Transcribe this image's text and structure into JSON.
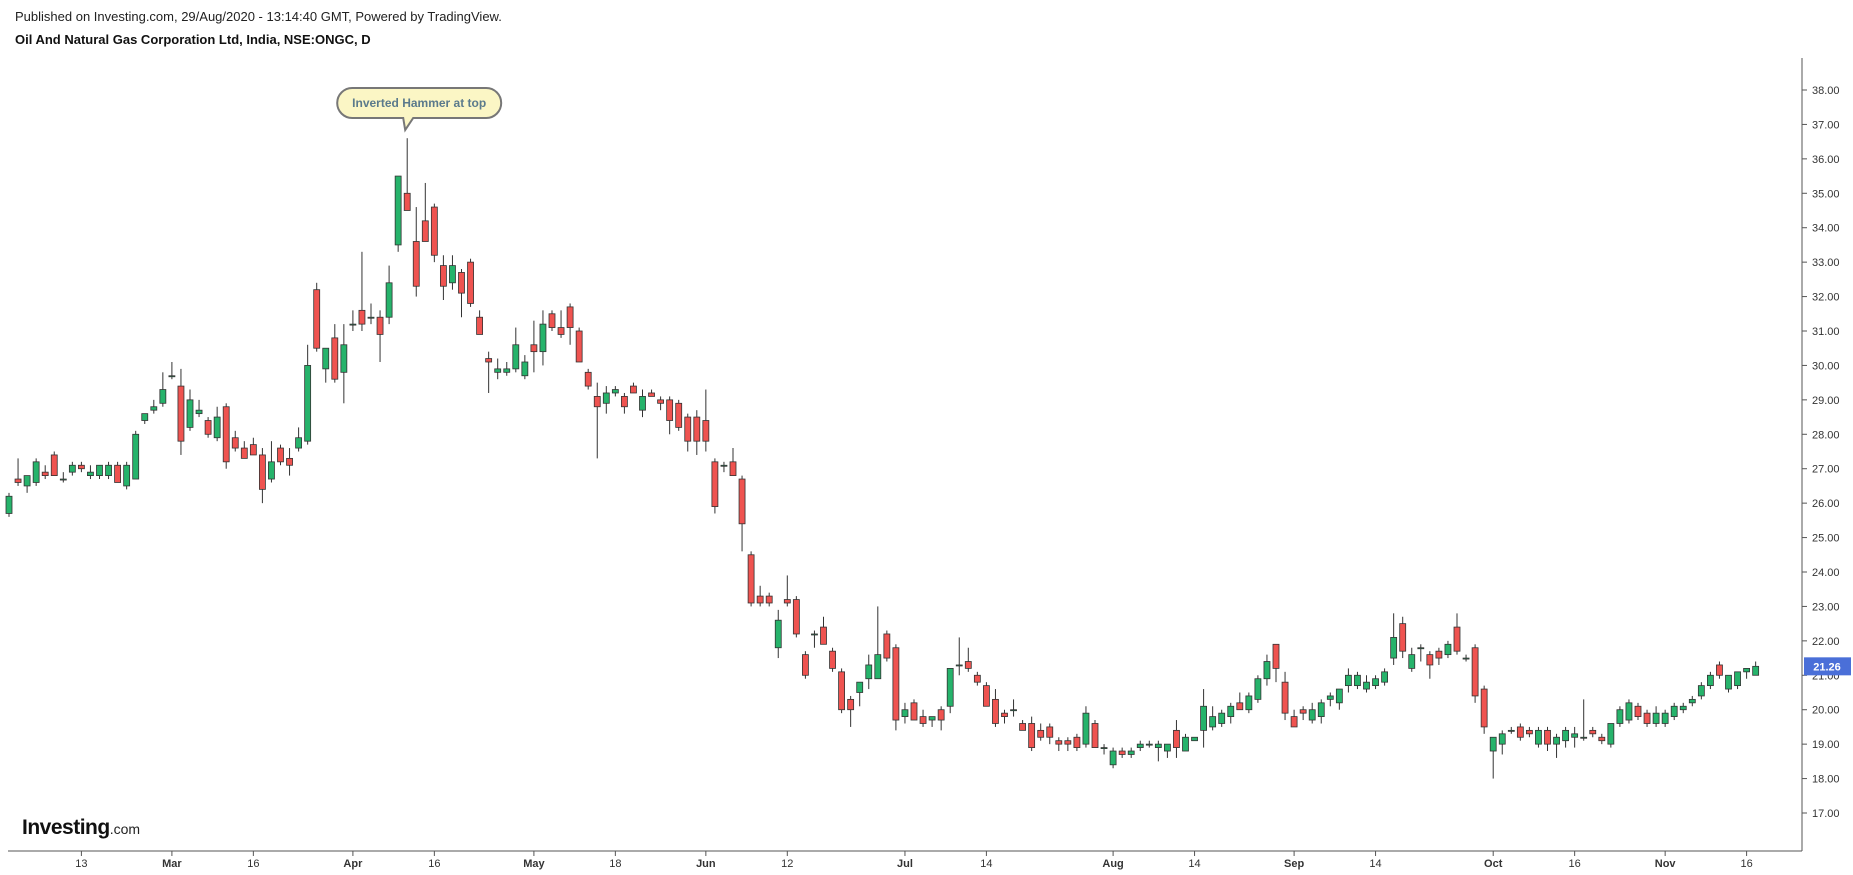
{
  "header": {
    "published": "Published on Investing.com, 29/Aug/2020 - 13:14:40 GMT, Powered by TradingView.",
    "symbol_title": "Oil And Natural Gas Corporation Ltd, India, NSE:ONGC, D"
  },
  "brand": {
    "name": "Investing",
    "suffix": ".com"
  },
  "chart_data": {
    "type": "candlestick",
    "y_range": [
      17.0,
      38.0
    ],
    "y_ticks": [
      "17.00",
      "18.00",
      "19.00",
      "20.00",
      "21.00",
      "22.00",
      "23.00",
      "24.00",
      "25.00",
      "26.00",
      "27.00",
      "28.00",
      "29.00",
      "30.00",
      "31.00",
      "32.00",
      "33.00",
      "34.00",
      "35.00",
      "36.00",
      "37.00",
      "38.00"
    ],
    "x_tick_labels": [
      {
        "label": "13",
        "major": false,
        "bar": 8
      },
      {
        "label": "Mar",
        "major": true,
        "bar": 18
      },
      {
        "label": "16",
        "major": false,
        "bar": 27
      },
      {
        "label": "Apr",
        "major": true,
        "bar": 38
      },
      {
        "label": "16",
        "major": false,
        "bar": 47
      },
      {
        "label": "May",
        "major": true,
        "bar": 58
      },
      {
        "label": "18",
        "major": false,
        "bar": 67
      },
      {
        "label": "Jun",
        "major": true,
        "bar": 77
      },
      {
        "label": "12",
        "major": false,
        "bar": 86
      },
      {
        "label": "Jul",
        "major": true,
        "bar": 99
      },
      {
        "label": "14",
        "major": false,
        "bar": 108
      },
      {
        "label": "Aug",
        "major": true,
        "bar": 122
      },
      {
        "label": "14",
        "major": false,
        "bar": 131
      },
      {
        "label": "Sep",
        "major": true,
        "bar": 142
      },
      {
        "label": "14",
        "major": false,
        "bar": 151
      },
      {
        "label": "Oct",
        "major": true,
        "bar": 164
      },
      {
        "label": "16",
        "major": false,
        "bar": 173
      },
      {
        "label": "Nov",
        "major": true,
        "bar": 183
      },
      {
        "label": "16",
        "major": false,
        "bar": 192
      }
    ],
    "last_price": "21.26",
    "last_price_color": "#4a6fd8",
    "up_color": "#26b36b",
    "down_color": "#ef5350",
    "annotation": {
      "text": "Inverted Hammer at top",
      "bar": 44
    },
    "candles": [
      [
        25.7,
        26.3,
        25.6,
        26.2
      ],
      [
        26.7,
        27.3,
        26.5,
        26.6
      ],
      [
        26.5,
        26.8,
        26.3,
        26.8
      ],
      [
        26.6,
        27.3,
        26.5,
        27.2
      ],
      [
        26.9,
        27.1,
        26.7,
        26.8
      ],
      [
        27.4,
        27.5,
        26.8,
        26.8
      ],
      [
        26.7,
        26.9,
        26.6,
        26.7
      ],
      [
        26.9,
        27.2,
        26.8,
        27.1
      ],
      [
        27.1,
        27.2,
        26.9,
        27.0
      ],
      [
        26.8,
        27.1,
        26.7,
        26.9
      ],
      [
        26.8,
        27.1,
        26.7,
        27.1
      ],
      [
        26.8,
        27.2,
        26.7,
        27.1
      ],
      [
        27.1,
        27.2,
        26.6,
        26.6
      ],
      [
        26.5,
        27.2,
        26.4,
        27.1
      ],
      [
        26.7,
        28.1,
        26.7,
        28.0
      ],
      [
        28.4,
        28.6,
        28.3,
        28.6
      ],
      [
        28.7,
        29.0,
        28.6,
        28.8
      ],
      [
        28.9,
        29.8,
        28.8,
        29.3
      ],
      [
        29.7,
        30.1,
        29.6,
        29.7
      ],
      [
        29.4,
        29.9,
        27.4,
        27.8
      ],
      [
        28.2,
        29.3,
        28.1,
        29.0
      ],
      [
        28.6,
        29.0,
        28.5,
        28.7
      ],
      [
        28.4,
        28.5,
        27.9,
        28.0
      ],
      [
        27.9,
        28.8,
        27.8,
        28.5
      ],
      [
        28.8,
        28.9,
        27.0,
        27.2
      ],
      [
        27.9,
        28.1,
        27.5,
        27.6
      ],
      [
        27.6,
        27.8,
        27.3,
        27.3
      ],
      [
        27.7,
        27.9,
        27.4,
        27.4
      ],
      [
        27.4,
        27.6,
        26.0,
        26.4
      ],
      [
        26.7,
        27.8,
        26.6,
        27.2
      ],
      [
        27.6,
        27.7,
        27.1,
        27.2
      ],
      [
        27.3,
        27.6,
        26.8,
        27.1
      ],
      [
        27.6,
        28.2,
        27.5,
        27.9
      ],
      [
        27.8,
        30.6,
        27.7,
        30.0
      ],
      [
        32.2,
        32.4,
        30.4,
        30.5
      ],
      [
        29.9,
        30.5,
        29.5,
        30.5
      ],
      [
        30.8,
        31.2,
        29.5,
        29.6
      ],
      [
        29.8,
        31.2,
        28.9,
        30.6
      ],
      [
        31.2,
        31.6,
        31.0,
        31.2
      ],
      [
        31.6,
        33.3,
        31.0,
        31.2
      ],
      [
        31.4,
        31.8,
        31.2,
        31.4
      ],
      [
        31.4,
        31.6,
        30.1,
        30.9
      ],
      [
        31.4,
        32.9,
        31.2,
        32.4
      ],
      [
        33.5,
        35.5,
        33.3,
        35.5
      ],
      [
        35.0,
        36.6,
        34.5,
        34.5
      ],
      [
        33.6,
        34.6,
        32.0,
        32.3
      ],
      [
        34.2,
        35.3,
        33.8,
        33.6
      ],
      [
        34.6,
        34.7,
        33.0,
        33.2
      ],
      [
        32.9,
        33.2,
        31.9,
        32.3
      ],
      [
        32.4,
        33.2,
        32.2,
        32.9
      ],
      [
        32.7,
        32.8,
        31.4,
        32.1
      ],
      [
        33.0,
        33.1,
        31.7,
        31.8
      ],
      [
        31.4,
        31.6,
        30.9,
        30.9
      ],
      [
        30.2,
        30.4,
        29.2,
        30.1
      ],
      [
        29.8,
        30.2,
        29.6,
        29.9
      ],
      [
        29.8,
        30.1,
        29.7,
        29.9
      ],
      [
        29.9,
        31.1,
        29.8,
        30.6
      ],
      [
        29.7,
        30.3,
        29.6,
        30.1
      ],
      [
        30.6,
        31.3,
        29.8,
        30.4
      ],
      [
        30.4,
        31.6,
        30.0,
        31.2
      ],
      [
        31.5,
        31.6,
        31.0,
        31.1
      ],
      [
        31.1,
        31.6,
        30.8,
        30.9
      ],
      [
        31.7,
        31.8,
        30.6,
        31.1
      ],
      [
        31.0,
        31.1,
        30.1,
        30.1
      ],
      [
        29.8,
        29.9,
        29.3,
        29.4
      ],
      [
        29.1,
        29.5,
        27.3,
        28.8
      ],
      [
        28.9,
        29.4,
        28.6,
        29.2
      ],
      [
        29.2,
        29.4,
        29.1,
        29.3
      ],
      [
        29.1,
        29.2,
        28.6,
        28.8
      ],
      [
        29.4,
        29.5,
        29.2,
        29.2
      ],
      [
        28.7,
        29.3,
        28.5,
        29.1
      ],
      [
        29.2,
        29.3,
        29.1,
        29.1
      ],
      [
        29.0,
        29.1,
        28.7,
        28.9
      ],
      [
        29.0,
        29.1,
        28.0,
        28.4
      ],
      [
        28.9,
        29.0,
        28.1,
        28.2
      ],
      [
        28.5,
        28.6,
        27.5,
        27.8
      ],
      [
        28.5,
        28.7,
        27.4,
        27.8
      ],
      [
        28.4,
        29.3,
        27.5,
        27.8
      ],
      [
        27.2,
        27.3,
        25.7,
        25.9
      ],
      [
        27.1,
        27.2,
        26.9,
        27.1
      ],
      [
        27.2,
        27.6,
        26.8,
        26.8
      ],
      [
        26.7,
        26.8,
        24.6,
        25.4
      ],
      [
        24.5,
        24.6,
        23.0,
        23.1
      ],
      [
        23.3,
        23.6,
        23.0,
        23.1
      ],
      [
        23.3,
        23.4,
        23.0,
        23.1
      ],
      [
        21.8,
        22.9,
        21.5,
        22.6
      ],
      [
        23.2,
        23.9,
        23.0,
        23.1
      ],
      [
        23.2,
        23.3,
        22.1,
        22.2
      ],
      [
        21.6,
        21.7,
        20.9,
        21.0
      ],
      [
        22.2,
        22.3,
        21.8,
        22.2
      ],
      [
        22.4,
        22.7,
        21.9,
        21.9
      ],
      [
        21.7,
        21.8,
        21.1,
        21.2
      ],
      [
        21.1,
        21.2,
        19.9,
        20.0
      ],
      [
        20.3,
        20.4,
        19.5,
        20.0
      ],
      [
        20.5,
        20.8,
        20.1,
        20.8
      ],
      [
        20.9,
        21.6,
        20.6,
        21.3
      ],
      [
        20.9,
        23.0,
        20.9,
        21.6
      ],
      [
        22.2,
        22.3,
        21.4,
        21.5
      ],
      [
        21.8,
        21.9,
        19.4,
        19.7
      ],
      [
        19.8,
        20.2,
        19.6,
        20.0
      ],
      [
        20.2,
        20.3,
        19.7,
        19.7
      ],
      [
        19.8,
        20.0,
        19.5,
        19.6
      ],
      [
        19.7,
        19.8,
        19.5,
        19.8
      ],
      [
        20.0,
        20.1,
        19.4,
        19.7
      ],
      [
        20.1,
        21.2,
        19.9,
        21.2
      ],
      [
        21.3,
        22.1,
        21.0,
        21.3
      ],
      [
        21.4,
        21.8,
        21.1,
        21.2
      ],
      [
        21.0,
        21.1,
        20.7,
        20.8
      ],
      [
        20.7,
        20.8,
        20.1,
        20.1
      ],
      [
        20.3,
        20.6,
        19.5,
        19.6
      ],
      [
        19.9,
        20.0,
        19.6,
        19.8
      ],
      [
        20.0,
        20.3,
        19.8,
        20.0
      ],
      [
        19.6,
        19.7,
        19.4,
        19.4
      ],
      [
        19.6,
        19.8,
        18.8,
        18.9
      ],
      [
        19.4,
        19.6,
        19.1,
        19.2
      ],
      [
        19.5,
        19.6,
        19.0,
        19.2
      ],
      [
        19.1,
        19.2,
        18.8,
        19.0
      ],
      [
        19.1,
        19.2,
        18.8,
        19.0
      ],
      [
        19.2,
        19.3,
        18.8,
        18.9
      ],
      [
        19.0,
        20.1,
        18.9,
        19.9
      ],
      [
        19.6,
        19.7,
        18.9,
        18.9
      ],
      [
        18.9,
        19.0,
        18.7,
        18.9
      ],
      [
        18.4,
        18.9,
        18.3,
        18.8
      ],
      [
        18.8,
        18.9,
        18.6,
        18.7
      ],
      [
        18.7,
        18.9,
        18.6,
        18.8
      ],
      [
        18.9,
        19.1,
        18.8,
        19.0
      ],
      [
        19.0,
        19.1,
        18.9,
        19.0
      ],
      [
        18.9,
        19.1,
        18.5,
        19.0
      ],
      [
        18.8,
        19.0,
        18.6,
        19.0
      ],
      [
        19.4,
        19.7,
        18.6,
        18.9
      ],
      [
        18.8,
        19.3,
        18.8,
        19.2
      ],
      [
        19.1,
        19.2,
        19.1,
        19.2
      ],
      [
        19.4,
        20.6,
        18.9,
        20.1
      ],
      [
        19.5,
        20.1,
        19.4,
        19.8
      ],
      [
        19.6,
        20.0,
        19.5,
        19.9
      ],
      [
        19.8,
        20.2,
        19.6,
        20.1
      ],
      [
        20.2,
        20.5,
        20.0,
        20.0
      ],
      [
        20.0,
        20.5,
        19.9,
        20.4
      ],
      [
        20.3,
        21.0,
        20.2,
        20.9
      ],
      [
        20.9,
        21.6,
        20.7,
        21.4
      ],
      [
        21.9,
        21.9,
        20.8,
        21.2
      ],
      [
        20.8,
        21.1,
        19.7,
        19.9
      ],
      [
        19.8,
        20.0,
        19.5,
        19.5
      ],
      [
        20.0,
        20.1,
        19.7,
        19.9
      ],
      [
        19.7,
        20.2,
        19.6,
        20.0
      ],
      [
        19.8,
        20.3,
        19.6,
        20.2
      ],
      [
        20.3,
        20.5,
        20.1,
        20.4
      ],
      [
        20.2,
        20.6,
        20.0,
        20.6
      ],
      [
        20.7,
        21.2,
        20.5,
        21.0
      ],
      [
        20.7,
        21.1,
        20.6,
        21.0
      ],
      [
        20.6,
        21.0,
        20.5,
        20.8
      ],
      [
        20.7,
        21.0,
        20.6,
        20.9
      ],
      [
        20.8,
        21.2,
        20.7,
        21.1
      ],
      [
        21.5,
        22.8,
        21.3,
        22.1
      ],
      [
        22.5,
        22.7,
        21.5,
        21.7
      ],
      [
        21.2,
        21.8,
        21.1,
        21.6
      ],
      [
        21.8,
        21.9,
        21.4,
        21.8
      ],
      [
        21.6,
        21.7,
        20.9,
        21.3
      ],
      [
        21.7,
        21.8,
        21.3,
        21.5
      ],
      [
        21.6,
        22.0,
        21.5,
        21.9
      ],
      [
        22.4,
        22.8,
        21.6,
        21.7
      ],
      [
        21.5,
        21.6,
        21.4,
        21.5
      ],
      [
        21.8,
        21.9,
        20.2,
        20.4
      ],
      [
        20.6,
        20.7,
        19.3,
        19.5
      ],
      [
        18.8,
        19.2,
        18.0,
        19.2
      ],
      [
        19.0,
        19.4,
        18.7,
        19.3
      ],
      [
        19.4,
        19.5,
        19.3,
        19.4
      ],
      [
        19.5,
        19.6,
        19.1,
        19.2
      ],
      [
        19.4,
        19.5,
        19.2,
        19.3
      ],
      [
        19.0,
        19.5,
        18.9,
        19.4
      ],
      [
        19.4,
        19.5,
        18.8,
        19.0
      ],
      [
        19.0,
        19.3,
        18.6,
        19.2
      ],
      [
        19.1,
        19.5,
        18.9,
        19.4
      ],
      [
        19.2,
        19.5,
        18.9,
        19.3
      ],
      [
        19.2,
        20.3,
        19.1,
        19.2
      ],
      [
        19.4,
        19.5,
        19.2,
        19.3
      ],
      [
        19.2,
        19.3,
        19.0,
        19.1
      ],
      [
        19.0,
        19.6,
        18.9,
        19.6
      ],
      [
        19.6,
        20.1,
        19.5,
        20.0
      ],
      [
        19.7,
        20.3,
        19.6,
        20.2
      ],
      [
        20.1,
        20.2,
        19.7,
        19.8
      ],
      [
        19.9,
        20.0,
        19.5,
        19.6
      ],
      [
        19.6,
        20.1,
        19.5,
        19.9
      ],
      [
        19.6,
        20.0,
        19.5,
        19.9
      ],
      [
        19.8,
        20.2,
        19.7,
        20.1
      ],
      [
        20.0,
        20.2,
        19.9,
        20.1
      ],
      [
        20.2,
        20.4,
        20.1,
        20.3
      ],
      [
        20.4,
        20.8,
        20.3,
        20.7
      ],
      [
        20.7,
        21.1,
        20.6,
        21.0
      ],
      [
        21.3,
        21.4,
        20.9,
        21.0
      ],
      [
        20.6,
        21.0,
        20.5,
        21.0
      ],
      [
        20.7,
        21.1,
        20.6,
        21.1
      ],
      [
        21.1,
        21.2,
        20.9,
        21.2
      ],
      [
        21.0,
        21.4,
        21.0,
        21.26
      ]
    ]
  }
}
